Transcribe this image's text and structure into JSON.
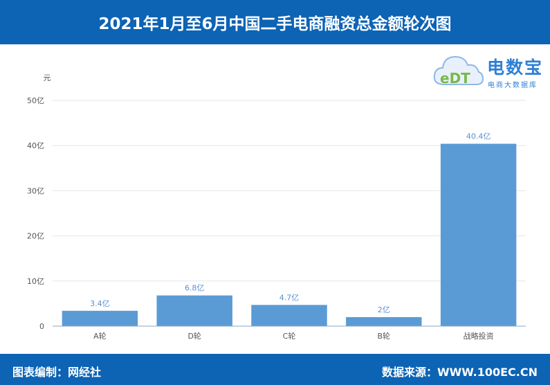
{
  "header": {
    "title": "2021年1月至6月中国二手电商融资总金额轮次图"
  },
  "logo": {
    "name": "电数宝",
    "subtitle": "电商大数据库",
    "mark": "eDT"
  },
  "footer": {
    "left": "图表编制：网经社",
    "right": "数据来源：WWW.100EC.CN"
  },
  "colors": {
    "bar": "#5b9bd5",
    "header": "#0d63b4",
    "label": "#5a8fcf"
  },
  "chart_data": {
    "type": "bar",
    "title": "2021年1月至6月中国二手电商融资总金额轮次图",
    "ylabel": "元",
    "xlabel": "",
    "categories": [
      "A轮",
      "D轮",
      "C轮",
      "B轮",
      "战略投资"
    ],
    "values": [
      3.4,
      6.8,
      4.7,
      2,
      40.4
    ],
    "value_labels": [
      "3.4亿",
      "6.8亿",
      "4.7亿",
      "2亿",
      "40.4亿"
    ],
    "ylim": [
      0,
      50
    ],
    "yticks": [
      0,
      10,
      20,
      30,
      40,
      50
    ],
    "ytick_labels": [
      "0",
      "10亿",
      "20亿",
      "30亿",
      "40亿",
      "50亿"
    ],
    "grid": true
  }
}
